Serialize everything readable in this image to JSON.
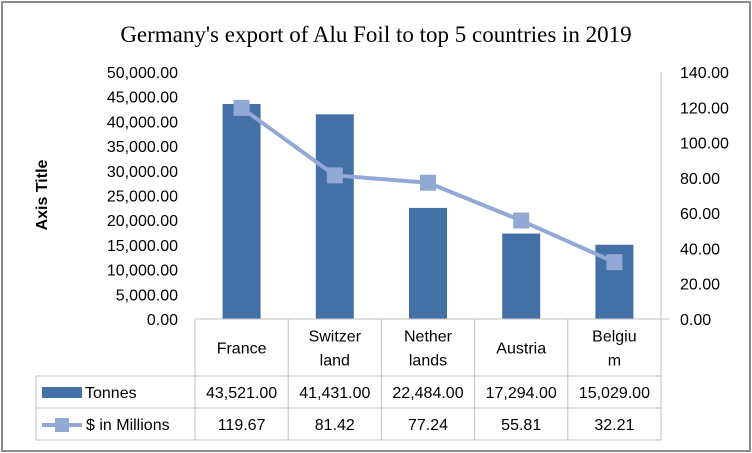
{
  "chart_data": {
    "type": "bar+line",
    "title": "Germany's export of Alu Foil to top 5 countries in 2019",
    "ylabel": "Axis Title",
    "categories": [
      "France",
      "Switzerland",
      "Netherlands",
      "Austria",
      "Belgium"
    ],
    "category_labels": [
      [
        "France"
      ],
      [
        "Switzer",
        "land"
      ],
      [
        "Nether",
        "lands"
      ],
      [
        "Austria"
      ],
      [
        "Belgiu",
        "m"
      ]
    ],
    "y_left": {
      "min": 0,
      "max": 50000,
      "step": 5000,
      "ticks": [
        "0.00",
        "5,000.00",
        "10,000.00",
        "15,000.00",
        "20,000.00",
        "25,000.00",
        "30,000.00",
        "35,000.00",
        "40,000.00",
        "45,000.00",
        "50,000.00"
      ]
    },
    "y_right": {
      "min": 0,
      "max": 140,
      "step": 20,
      "ticks": [
        "0.00",
        "20.00",
        "40.00",
        "60.00",
        "80.00",
        "100.00",
        "120.00",
        "140.00"
      ]
    },
    "series": [
      {
        "name": "Tonnes",
        "type": "bar",
        "axis": "left",
        "color": "#4470a8",
        "values": [
          43521,
          41431,
          22484,
          17294,
          15029
        ],
        "labels": [
          "43,521.00",
          "41,431.00",
          "22,484.00",
          "17,294.00",
          "15,029.00"
        ]
      },
      {
        "name": "$ in Millions",
        "type": "line",
        "axis": "right",
        "color": "#92a9d6",
        "values": [
          119.67,
          81.42,
          77.24,
          55.81,
          32.21
        ],
        "labels": [
          "119.67",
          "81.42",
          "77.24",
          "55.81",
          "32.21"
        ]
      }
    ],
    "grid": false,
    "legend": "data-table"
  }
}
